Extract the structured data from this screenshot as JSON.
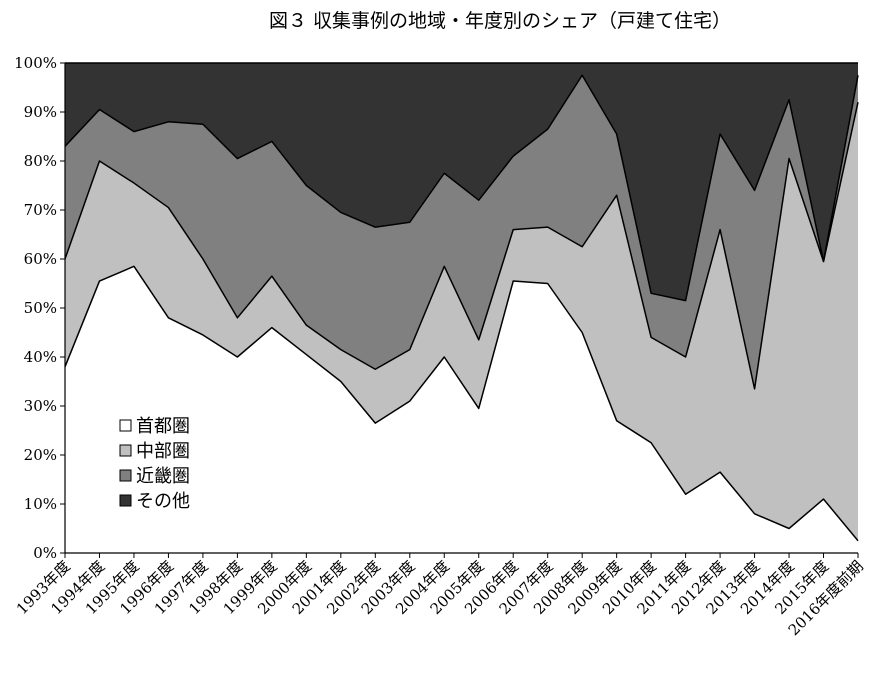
{
  "chart_data": {
    "type": "area",
    "stacked": true,
    "title": "図３ 収集事例の地域・年度別のシェア（戸建て住宅）",
    "xlabel": "",
    "ylabel": "",
    "ylim": [
      0,
      100
    ],
    "y_ticks": [
      "0%",
      "10%",
      "20%",
      "30%",
      "40%",
      "50%",
      "60%",
      "70%",
      "80%",
      "90%",
      "100%"
    ],
    "y_tick_values": [
      0,
      10,
      20,
      30,
      40,
      50,
      60,
      70,
      80,
      90,
      100
    ],
    "grid": false,
    "legend_position": "bottom-left",
    "categories": [
      "1993年度",
      "1994年度",
      "1995年度",
      "1996年度",
      "1997年度",
      "1998年度",
      "1999年度",
      "2000年度",
      "2001年度",
      "2002年度",
      "2003年度",
      "2004年度",
      "2005年度",
      "2006年度",
      "2007年度",
      "2008年度",
      "2009年度",
      "2010年度",
      "2011年度",
      "2012年度",
      "2013年度",
      "2014年度",
      "2015年度",
      "2016年度前期"
    ],
    "series": [
      {
        "name": "首都圏",
        "color": "#ffffff",
        "values": [
          38,
          55.5,
          58.5,
          48,
          44.5,
          40,
          46,
          40.5,
          35,
          26.5,
          31,
          40,
          29.5,
          55.5,
          55,
          45,
          27,
          22.5,
          12,
          16.5,
          8,
          5,
          11,
          2.5
        ]
      },
      {
        "name": "中部圏",
        "color": "#c0c0c0",
        "values": [
          22,
          24.5,
          17,
          22.5,
          15.5,
          8,
          10.5,
          6,
          6.5,
          11,
          10.5,
          18.5,
          14,
          10.5,
          11.5,
          17.5,
          46,
          21.5,
          28,
          49.5,
          25.5,
          75.5,
          48.5,
          89.5
        ]
      },
      {
        "name": "近畿圏",
        "color": "#808080",
        "values": [
          23,
          10.5,
          10.5,
          17.5,
          27.5,
          32.5,
          27.5,
          28.5,
          28,
          29,
          26,
          19,
          28.5,
          15,
          20,
          35,
          12.5,
          9,
          11.5,
          19.5,
          40.5,
          12,
          0,
          5.5
        ]
      },
      {
        "name": "その他",
        "color": "#333333",
        "values": [
          17,
          9.5,
          14,
          12,
          12.5,
          19.5,
          16,
          25,
          30.5,
          33.5,
          32.5,
          22.5,
          28,
          19,
          13.5,
          2.5,
          14.5,
          47,
          48.5,
          14.5,
          26,
          7.5,
          40.5,
          2.5
        ]
      }
    ]
  }
}
